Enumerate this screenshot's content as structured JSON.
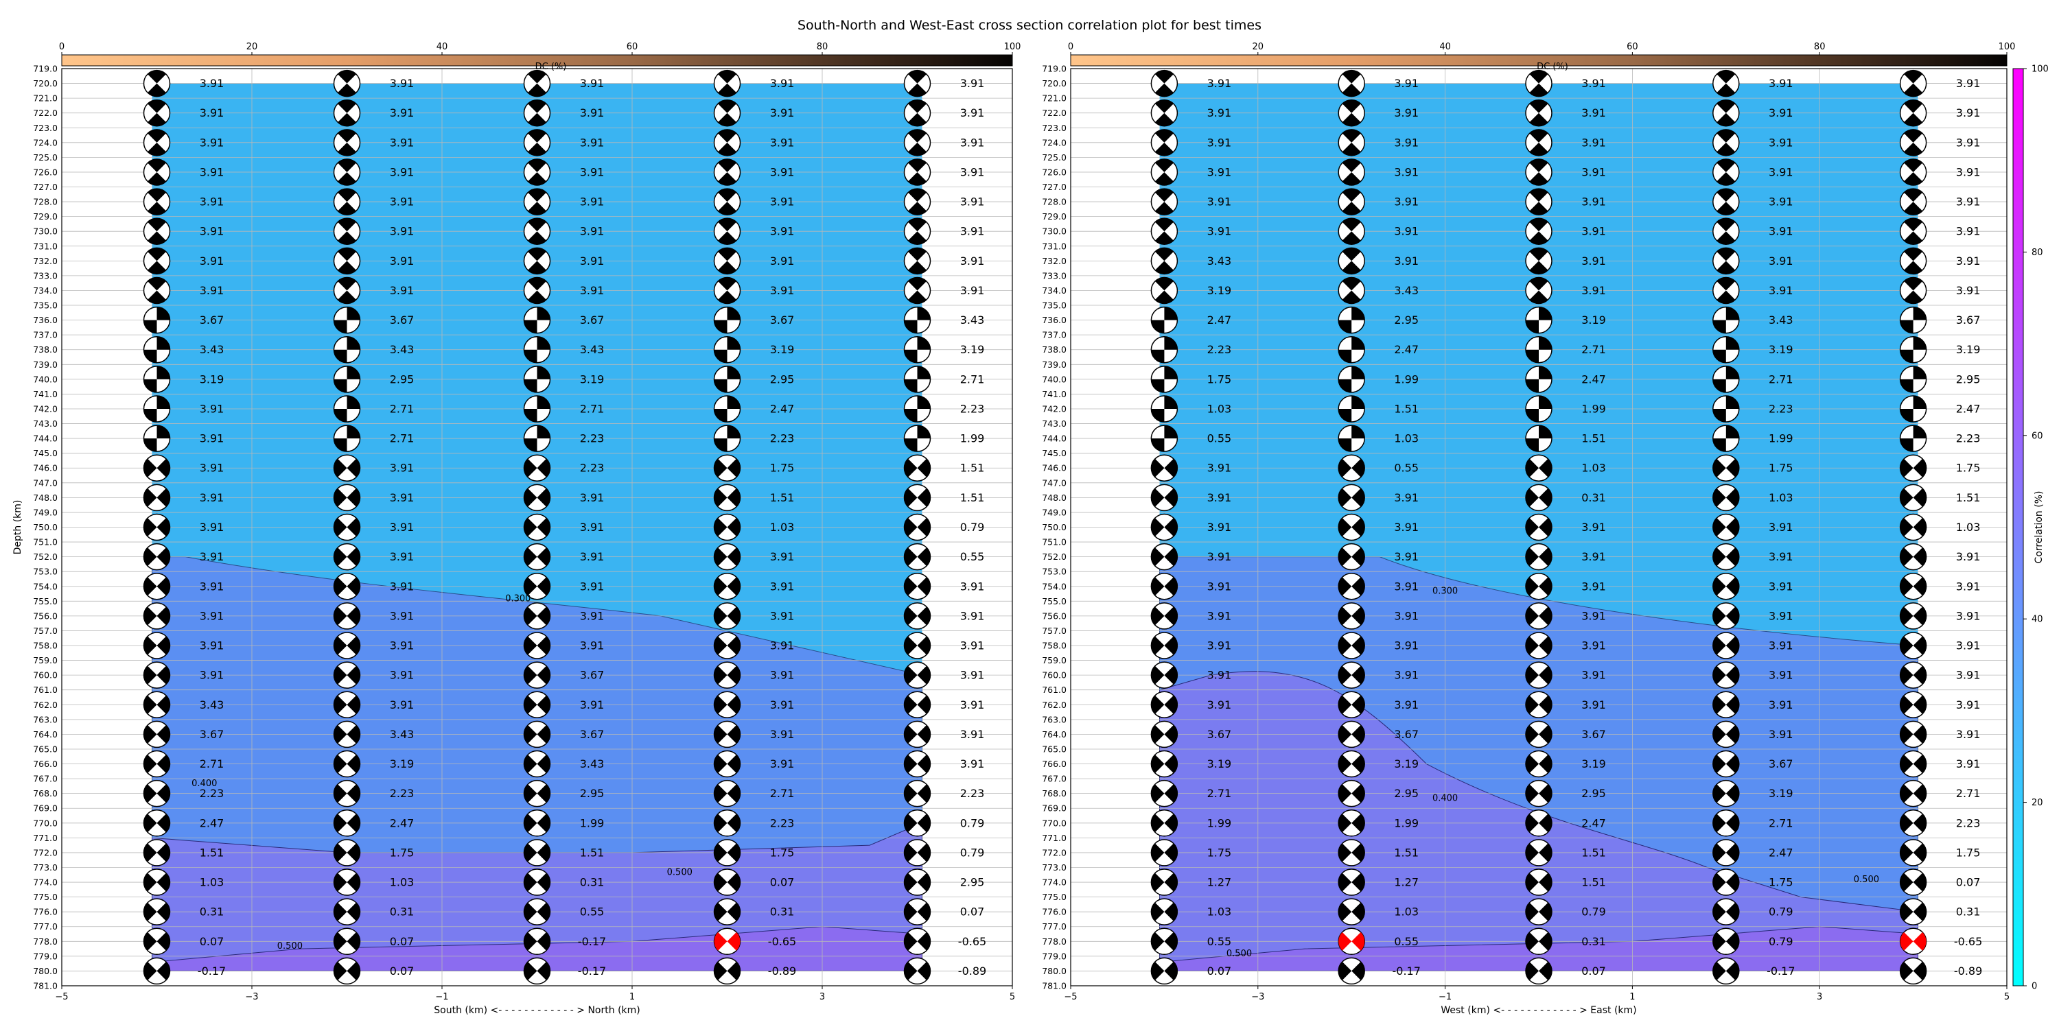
{
  "title": "South-North and West-East cross section correlation plot for best times",
  "chart_data": [
    {
      "type": "heatmap",
      "panel": "south-north",
      "xlabel": "South (km) <- - - - - - - - - - - - > North (km)",
      "ylabel": "Depth (km)",
      "xlim": [
        -5,
        5
      ],
      "ylim": [
        781,
        719
      ],
      "x_ticks": [
        "−5",
        "−3",
        "−1",
        "1",
        "3",
        "5"
      ],
      "depth_ticks": [
        "719.0",
        "720.0",
        "721.0",
        "722.0",
        "723.0",
        "724.0",
        "725.0",
        "726.0",
        "727.0",
        "728.0",
        "729.0",
        "730.0",
        "731.0",
        "732.0",
        "733.0",
        "734.0",
        "735.0",
        "736.0",
        "737.0",
        "738.0",
        "739.0",
        "740.0",
        "741.0",
        "742.0",
        "743.0",
        "744.0",
        "745.0",
        "746.0",
        "747.0",
        "748.0",
        "749.0",
        "750.0",
        "751.0",
        "752.0",
        "753.0",
        "754.0",
        "755.0",
        "756.0",
        "757.0",
        "758.0",
        "759.0",
        "760.0",
        "761.0",
        "762.0",
        "763.0",
        "764.0",
        "765.0",
        "766.0",
        "767.0",
        "768.0",
        "769.0",
        "770.0",
        "771.0",
        "772.0",
        "773.0",
        "774.0",
        "775.0",
        "776.0",
        "777.0",
        "778.0",
        "779.0",
        "780.0",
        "781.0"
      ],
      "colorbar_top": {
        "label": "DC (%)",
        "ticks": [
          "0",
          "20",
          "40",
          "60",
          "80",
          "100"
        ]
      },
      "columns_x": [
        -4,
        -2,
        0,
        2,
        4
      ],
      "depths": [
        720,
        722,
        724,
        726,
        728,
        730,
        732,
        734,
        736,
        738,
        740,
        742,
        744,
        746,
        748,
        750,
        752,
        754,
        756,
        758,
        760,
        762,
        764,
        766,
        768,
        770,
        772,
        774,
        776,
        778,
        780
      ],
      "values": [
        [
          "3.91",
          "3.91",
          "3.91",
          "3.91",
          "3.91"
        ],
        [
          "3.91",
          "3.91",
          "3.91",
          "3.91",
          "3.91"
        ],
        [
          "3.91",
          "3.91",
          "3.91",
          "3.91",
          "3.91"
        ],
        [
          "3.91",
          "3.91",
          "3.91",
          "3.91",
          "3.91"
        ],
        [
          "3.91",
          "3.91",
          "3.91",
          "3.91",
          "3.91"
        ],
        [
          "3.91",
          "3.91",
          "3.91",
          "3.91",
          "3.91"
        ],
        [
          "3.91",
          "3.91",
          "3.91",
          "3.91",
          "3.91"
        ],
        [
          "3.91",
          "3.91",
          "3.91",
          "3.91",
          "3.91"
        ],
        [
          "3.67",
          "3.67",
          "3.67",
          "3.67",
          "3.43"
        ],
        [
          "3.43",
          "3.43",
          "3.43",
          "3.19",
          "3.19"
        ],
        [
          "3.19",
          "2.95",
          "3.19",
          "2.95",
          "2.71"
        ],
        [
          "3.91",
          "2.71",
          "2.71",
          "2.47",
          "2.23"
        ],
        [
          "3.91",
          "2.71",
          "2.23",
          "2.23",
          "1.99"
        ],
        [
          "3.91",
          "3.91",
          "2.23",
          "1.75",
          "1.51"
        ],
        [
          "3.91",
          "3.91",
          "3.91",
          "1.51",
          "1.51"
        ],
        [
          "3.91",
          "3.91",
          "3.91",
          "1.03",
          "0.79"
        ],
        [
          "3.91",
          "3.91",
          "3.91",
          "3.91",
          "0.55"
        ],
        [
          "3.91",
          "3.91",
          "3.91",
          "3.91",
          "3.91"
        ],
        [
          "3.91",
          "3.91",
          "3.91",
          "3.91",
          "3.91"
        ],
        [
          "3.91",
          "3.91",
          "3.91",
          "3.91",
          "3.91"
        ],
        [
          "3.91",
          "3.91",
          "3.67",
          "3.91",
          "3.91"
        ],
        [
          "3.43",
          "3.91",
          "3.91",
          "3.91",
          "3.91"
        ],
        [
          "3.67",
          "3.43",
          "3.67",
          "3.91",
          "3.91"
        ],
        [
          "2.71",
          "3.19",
          "3.43",
          "3.91",
          "3.91"
        ],
        [
          "2.23",
          "2.23",
          "2.95",
          "2.71",
          "2.23"
        ],
        [
          "2.47",
          "2.47",
          "1.99",
          "2.23",
          "0.79"
        ],
        [
          "1.51",
          "1.75",
          "1.51",
          "1.75",
          "0.79"
        ],
        [
          "1.03",
          "1.03",
          "0.31",
          "0.07",
          "2.95"
        ],
        [
          "0.31",
          "0.31",
          "0.55",
          "0.31",
          "0.07"
        ],
        [
          "0.07",
          "0.07",
          "-0.17",
          "-0.65",
          "-0.65"
        ],
        [
          "-0.17",
          "0.07",
          "-0.17",
          "-0.89",
          "-0.89"
        ]
      ],
      "contour_labels": [
        "0.300",
        "0.400",
        "0.500",
        "0.500"
      ],
      "highlight": {
        "x": 2,
        "depth": 778,
        "color": "#ff0000"
      }
    },
    {
      "type": "heatmap",
      "panel": "west-east",
      "xlabel": "West (km) <- - - - - - - - - - - - > East (km)",
      "xlim": [
        -5,
        5
      ],
      "ylim": [
        781,
        719
      ],
      "x_ticks": [
        "−5",
        "−3",
        "−1",
        "1",
        "3",
        "5"
      ],
      "colorbar_top": {
        "label": "DC (%)",
        "ticks": [
          "0",
          "20",
          "40",
          "60",
          "80",
          "100"
        ]
      },
      "colorbar_right": {
        "label": "Correlation (%)",
        "ticks": [
          "0",
          "20",
          "40",
          "60",
          "80",
          "100"
        ]
      },
      "columns_x": [
        -4,
        -2,
        0,
        2,
        4
      ],
      "depths": [
        720,
        722,
        724,
        726,
        728,
        730,
        732,
        734,
        736,
        738,
        740,
        742,
        744,
        746,
        748,
        750,
        752,
        754,
        756,
        758,
        760,
        762,
        764,
        766,
        768,
        770,
        772,
        774,
        776,
        778,
        780
      ],
      "values": [
        [
          "3.91",
          "3.91",
          "3.91",
          "3.91",
          "3.91"
        ],
        [
          "3.91",
          "3.91",
          "3.91",
          "3.91",
          "3.91"
        ],
        [
          "3.91",
          "3.91",
          "3.91",
          "3.91",
          "3.91"
        ],
        [
          "3.91",
          "3.91",
          "3.91",
          "3.91",
          "3.91"
        ],
        [
          "3.91",
          "3.91",
          "3.91",
          "3.91",
          "3.91"
        ],
        [
          "3.91",
          "3.91",
          "3.91",
          "3.91",
          "3.91"
        ],
        [
          "3.43",
          "3.91",
          "3.91",
          "3.91",
          "3.91"
        ],
        [
          "3.19",
          "3.43",
          "3.91",
          "3.91",
          "3.91"
        ],
        [
          "2.47",
          "2.95",
          "3.19",
          "3.43",
          "3.67"
        ],
        [
          "2.23",
          "2.47",
          "2.71",
          "3.19",
          "3.19"
        ],
        [
          "1.75",
          "1.99",
          "2.47",
          "2.71",
          "2.95"
        ],
        [
          "1.03",
          "1.51",
          "1.99",
          "2.23",
          "2.47"
        ],
        [
          "0.55",
          "1.03",
          "1.51",
          "1.99",
          "2.23"
        ],
        [
          "3.91",
          "0.55",
          "1.03",
          "1.75",
          "1.75"
        ],
        [
          "3.91",
          "3.91",
          "0.31",
          "1.03",
          "1.51"
        ],
        [
          "3.91",
          "3.91",
          "3.91",
          "3.91",
          "1.03"
        ],
        [
          "3.91",
          "3.91",
          "3.91",
          "3.91",
          "3.91"
        ],
        [
          "3.91",
          "3.91",
          "3.91",
          "3.91",
          "3.91"
        ],
        [
          "3.91",
          "3.91",
          "3.91",
          "3.91",
          "3.91"
        ],
        [
          "3.91",
          "3.91",
          "3.91",
          "3.91",
          "3.91"
        ],
        [
          "3.91",
          "3.91",
          "3.91",
          "3.91",
          "3.91"
        ],
        [
          "3.91",
          "3.91",
          "3.91",
          "3.91",
          "3.91"
        ],
        [
          "3.67",
          "3.67",
          "3.67",
          "3.91",
          "3.91"
        ],
        [
          "3.19",
          "3.19",
          "3.19",
          "3.67",
          "3.91"
        ],
        [
          "2.71",
          "2.95",
          "2.95",
          "3.19",
          "2.71"
        ],
        [
          "1.99",
          "1.99",
          "2.47",
          "2.71",
          "2.23"
        ],
        [
          "1.75",
          "1.51",
          "1.51",
          "2.47",
          "1.75"
        ],
        [
          "1.27",
          "1.27",
          "1.51",
          "1.75",
          "0.07"
        ],
        [
          "1.03",
          "1.03",
          "0.79",
          "0.79",
          "0.31"
        ],
        [
          "0.55",
          "0.55",
          "0.31",
          "0.79",
          "-0.65"
        ],
        [
          "0.07",
          "-0.17",
          "0.07",
          "-0.17",
          "-0.89"
        ]
      ],
      "contour_labels": [
        "0.300",
        "0.400",
        "0.500",
        "0.500"
      ],
      "highlight": {
        "x": -2,
        "depth": 778,
        "color": "#ff0000"
      },
      "highlight2": {
        "x": 4,
        "depth": 778,
        "color": "#ff0000"
      }
    }
  ]
}
